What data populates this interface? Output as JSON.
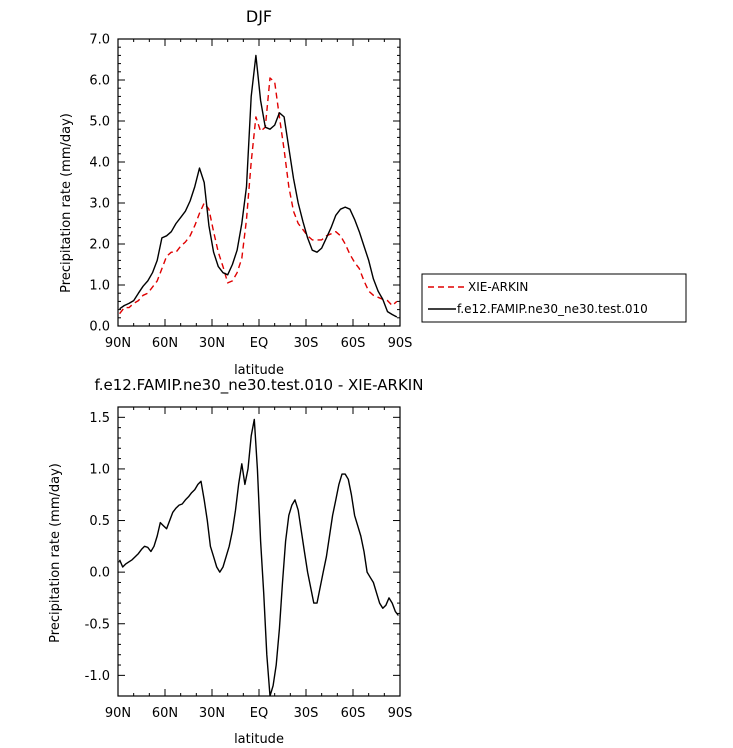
{
  "chart_data": [
    {
      "type": "line",
      "title": "DJF",
      "xlabel": "latitude",
      "ylabel": "Precipitation rate (mm/day)",
      "xlim": [
        -90,
        90
      ],
      "ylim": [
        0,
        7
      ],
      "xticks": [
        -90,
        -60,
        -30,
        0,
        30,
        60,
        90
      ],
      "xticklabels": [
        "90N",
        "60N",
        "30N",
        "EQ",
        "30S",
        "60S",
        "90S"
      ],
      "yticks": [
        0,
        1,
        2,
        3,
        4,
        5,
        6,
        7
      ],
      "yticklabels": [
        "0.0",
        "1.0",
        "2.0",
        "3.0",
        "4.0",
        "5.0",
        "6.0",
        "7.0"
      ],
      "legend_position": "right",
      "series": [
        {
          "name": "XIE-ARKIN",
          "color": "#e00000",
          "dash": "dashed",
          "x": [
            -89,
            -86,
            -83,
            -80,
            -77,
            -74,
            -71,
            -68,
            -65,
            -62,
            -59,
            -56,
            -53,
            -50,
            -47,
            -44,
            -41,
            -38,
            -35,
            -32,
            -29,
            -26,
            -23,
            -20,
            -17,
            -14,
            -11,
            -8,
            -5,
            -2,
            1,
            4,
            7,
            10,
            13,
            16,
            19,
            22,
            25,
            28,
            31,
            34,
            37,
            40,
            43,
            46,
            49,
            52,
            55,
            58,
            61,
            64,
            67,
            70,
            73,
            76,
            79,
            82,
            85,
            88
          ],
          "y": [
            0.3,
            0.45,
            0.45,
            0.55,
            0.62,
            0.75,
            0.8,
            0.95,
            1.1,
            1.4,
            1.7,
            1.8,
            1.8,
            1.95,
            2.05,
            2.2,
            2.45,
            2.75,
            3.0,
            2.85,
            2.3,
            1.8,
            1.45,
            1.05,
            1.1,
            1.3,
            1.65,
            2.6,
            4.0,
            5.1,
            4.75,
            4.85,
            6.05,
            5.95,
            5.1,
            4.3,
            3.4,
            2.8,
            2.5,
            2.35,
            2.2,
            2.1,
            2.1,
            2.1,
            2.2,
            2.25,
            2.3,
            2.2,
            2.0,
            1.75,
            1.55,
            1.4,
            1.1,
            0.85,
            0.75,
            0.7,
            0.65,
            0.62,
            0.5,
            0.6
          ]
        },
        {
          "name": "f.e12.FAMIP.ne30_ne30.test.010",
          "color": "#000000",
          "dash": "solid",
          "x": [
            -89,
            -86,
            -83,
            -80,
            -77,
            -74,
            -71,
            -68,
            -65,
            -62,
            -59,
            -56,
            -53,
            -50,
            -47,
            -44,
            -41,
            -38,
            -35,
            -32,
            -29,
            -26,
            -23,
            -20,
            -17,
            -14,
            -11,
            -8,
            -5,
            -2,
            1,
            4,
            7,
            10,
            13,
            16,
            19,
            22,
            25,
            28,
            31,
            34,
            37,
            40,
            43,
            46,
            49,
            52,
            55,
            58,
            61,
            64,
            67,
            70,
            73,
            76,
            79,
            82,
            85,
            88
          ],
          "y": [
            0.42,
            0.5,
            0.55,
            0.62,
            0.8,
            0.97,
            1.1,
            1.3,
            1.6,
            2.15,
            2.2,
            2.3,
            2.5,
            2.65,
            2.8,
            3.05,
            3.4,
            3.85,
            3.5,
            2.45,
            1.8,
            1.45,
            1.3,
            1.25,
            1.5,
            1.85,
            2.5,
            3.4,
            5.6,
            6.6,
            5.5,
            4.85,
            4.8,
            4.9,
            5.2,
            5.1,
            4.35,
            3.6,
            3.0,
            2.55,
            2.15,
            1.85,
            1.8,
            1.9,
            2.15,
            2.4,
            2.7,
            2.85,
            2.9,
            2.85,
            2.6,
            2.3,
            1.95,
            1.6,
            1.15,
            0.85,
            0.65,
            0.35,
            0.28,
            0.22
          ]
        }
      ]
    },
    {
      "type": "line",
      "title": "f.e12.FAMIP.ne30_ne30.test.010 - XIE-ARKIN",
      "xlabel": "latitude",
      "ylabel": "Precipitation rate (mm/day)",
      "xlim": [
        -90,
        90
      ],
      "ylim": [
        -1.2,
        1.6
      ],
      "xticks": [
        -90,
        -60,
        -30,
        0,
        30,
        60,
        90
      ],
      "xticklabels": [
        "90N",
        "60N",
        "30N",
        "EQ",
        "30S",
        "60S",
        "90S"
      ],
      "yticks": [
        -1.0,
        -0.5,
        0.0,
        0.5,
        1.0,
        1.5
      ],
      "yticklabels": [
        "-1.0",
        "-0.5",
        "0.0",
        "0.5",
        "1.0",
        "1.5"
      ],
      "series": [
        {
          "color": "#000000",
          "dash": "solid",
          "x": [
            -89,
            -87,
            -85,
            -83,
            -81,
            -79,
            -77,
            -75,
            -73,
            -71,
            -69,
            -67,
            -65,
            -63,
            -61,
            -59,
            -57,
            -55,
            -53,
            -51,
            -49,
            -47,
            -45,
            -43,
            -41,
            -39,
            -37,
            -35,
            -33,
            -31,
            -29,
            -27,
            -25,
            -23,
            -21,
            -19,
            -17,
            -15,
            -13,
            -11,
            -9,
            -7,
            -5,
            -3,
            -1,
            1,
            3,
            5,
            7,
            9,
            11,
            13,
            15,
            17,
            19,
            21,
            23,
            25,
            27,
            29,
            31,
            33,
            35,
            37,
            39,
            41,
            43,
            45,
            47,
            49,
            51,
            53,
            55,
            57,
            59,
            61,
            63,
            65,
            67,
            69,
            71,
            73,
            75,
            77,
            79,
            81,
            83,
            85,
            87,
            89
          ],
          "y": [
            0.12,
            0.05,
            0.08,
            0.1,
            0.12,
            0.15,
            0.18,
            0.22,
            0.25,
            0.24,
            0.2,
            0.25,
            0.35,
            0.48,
            0.45,
            0.42,
            0.5,
            0.58,
            0.62,
            0.65,
            0.66,
            0.7,
            0.73,
            0.77,
            0.8,
            0.85,
            0.88,
            0.7,
            0.5,
            0.25,
            0.15,
            0.05,
            0.0,
            0.05,
            0.15,
            0.25,
            0.4,
            0.6,
            0.85,
            1.05,
            0.85,
            1.0,
            1.32,
            1.48,
            1.0,
            0.3,
            -0.2,
            -0.8,
            -1.2,
            -1.1,
            -0.9,
            -0.55,
            -0.1,
            0.3,
            0.55,
            0.65,
            0.7,
            0.6,
            0.4,
            0.2,
            0.0,
            -0.15,
            -0.3,
            -0.3,
            -0.15,
            0.0,
            0.15,
            0.35,
            0.55,
            0.7,
            0.85,
            0.95,
            0.95,
            0.9,
            0.75,
            0.55,
            0.45,
            0.35,
            0.2,
            0.0,
            -0.05,
            -0.1,
            -0.2,
            -0.3,
            -0.35,
            -0.32,
            -0.25,
            -0.3,
            -0.38,
            -0.42
          ]
        }
      ]
    }
  ]
}
